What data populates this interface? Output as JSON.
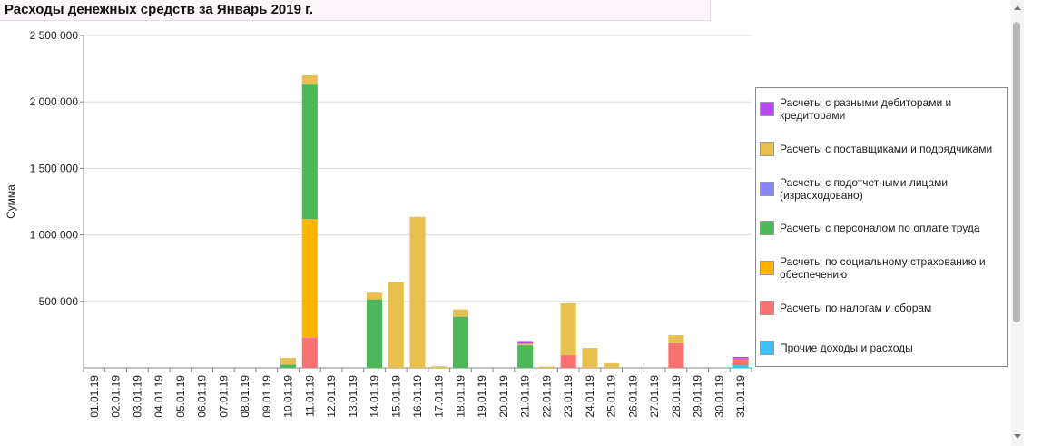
{
  "chart_data": {
    "type": "stacked-bar",
    "title": "Расходы денежных средств за Январь 2019 г.",
    "y_label": "Сумма",
    "categories": [
      "01.01.19",
      "02.01.19",
      "03.01.19",
      "04.01.19",
      "05.01.19",
      "06.01.19",
      "07.01.19",
      "08.01.19",
      "09.01.19",
      "10.01.19",
      "11.01.19",
      "12.01.19",
      "13.01.19",
      "14.01.19",
      "15.01.19",
      "16.01.19",
      "17.01.19",
      "18.01.19",
      "19.01.19",
      "20.01.19",
      "21.01.19",
      "22.01.19",
      "23.01.19",
      "24.01.19",
      "25.01.19",
      "26.01.19",
      "27.01.19",
      "28.01.19",
      "29.01.19",
      "30.01.19",
      "31.01.19"
    ],
    "ylim": [
      0,
      2500000
    ],
    "yticks": [
      {
        "value": 500000,
        "label": "500 000"
      },
      {
        "value": 1000000,
        "label": "1 000 000"
      },
      {
        "value": 1500000,
        "label": "1 500 000"
      },
      {
        "value": 2000000,
        "label": "2 000 000"
      },
      {
        "value": 2500000,
        "label": "2 500 000"
      }
    ],
    "grid": true,
    "series": [
      {
        "name": "Прочие доходы и расходы",
        "color": "#3ec0f5",
        "values": [
          null,
          null,
          null,
          null,
          null,
          null,
          null,
          null,
          null,
          null,
          null,
          null,
          null,
          null,
          null,
          null,
          null,
          null,
          null,
          null,
          null,
          null,
          null,
          null,
          null,
          null,
          null,
          null,
          null,
          null,
          20000
        ]
      },
      {
        "name": "Расчеты по налогам и сборам",
        "color": "#f87272",
        "values": [
          null,
          null,
          null,
          null,
          null,
          null,
          null,
          null,
          null,
          null,
          225000,
          null,
          null,
          null,
          null,
          null,
          null,
          null,
          null,
          null,
          null,
          null,
          95000,
          null,
          null,
          null,
          null,
          185000,
          null,
          null,
          50000
        ]
      },
      {
        "name": "Расчеты по социальному страхованию и обеспечению",
        "color": "#ffb300",
        "values": [
          null,
          null,
          null,
          null,
          null,
          null,
          null,
          null,
          null,
          null,
          895000,
          null,
          null,
          null,
          null,
          null,
          null,
          null,
          null,
          null,
          null,
          null,
          null,
          null,
          null,
          null,
          null,
          null,
          null,
          null,
          null
        ]
      },
      {
        "name": "Расчеты с персоналом по оплате труда",
        "color": "#4cb85a",
        "values": [
          null,
          null,
          null,
          null,
          null,
          null,
          null,
          null,
          null,
          25000,
          1010000,
          null,
          null,
          515000,
          null,
          null,
          null,
          385000,
          null,
          null,
          170000,
          null,
          null,
          null,
          null,
          null,
          null,
          null,
          null,
          null,
          null
        ]
      },
      {
        "name": "Расчеты с подотчетными лицами (израсходовано)",
        "color": "#8585f5",
        "values": [
          null,
          null,
          null,
          null,
          null,
          null,
          null,
          null,
          null,
          null,
          null,
          null,
          null,
          null,
          null,
          null,
          null,
          null,
          null,
          null,
          null,
          null,
          null,
          null,
          null,
          null,
          null,
          null,
          null,
          null,
          null
        ]
      },
      {
        "name": "Расчеты с поставщиками и подрядчиками",
        "color": "#e8c050",
        "values": [
          null,
          null,
          null,
          null,
          null,
          null,
          null,
          null,
          null,
          50000,
          70000,
          null,
          null,
          50000,
          645000,
          1135000,
          12000,
          55000,
          null,
          null,
          12000,
          10000,
          390000,
          150000,
          35000,
          null,
          null,
          60000,
          null,
          null,
          null
        ]
      },
      {
        "name": "Расчеты с разными дебиторами и кредиторами",
        "color": "#b448f2",
        "values": [
          null,
          null,
          null,
          null,
          null,
          null,
          null,
          null,
          null,
          null,
          null,
          null,
          null,
          null,
          null,
          null,
          null,
          null,
          null,
          null,
          20000,
          null,
          null,
          null,
          null,
          null,
          null,
          null,
          null,
          null,
          12000
        ]
      }
    ]
  }
}
